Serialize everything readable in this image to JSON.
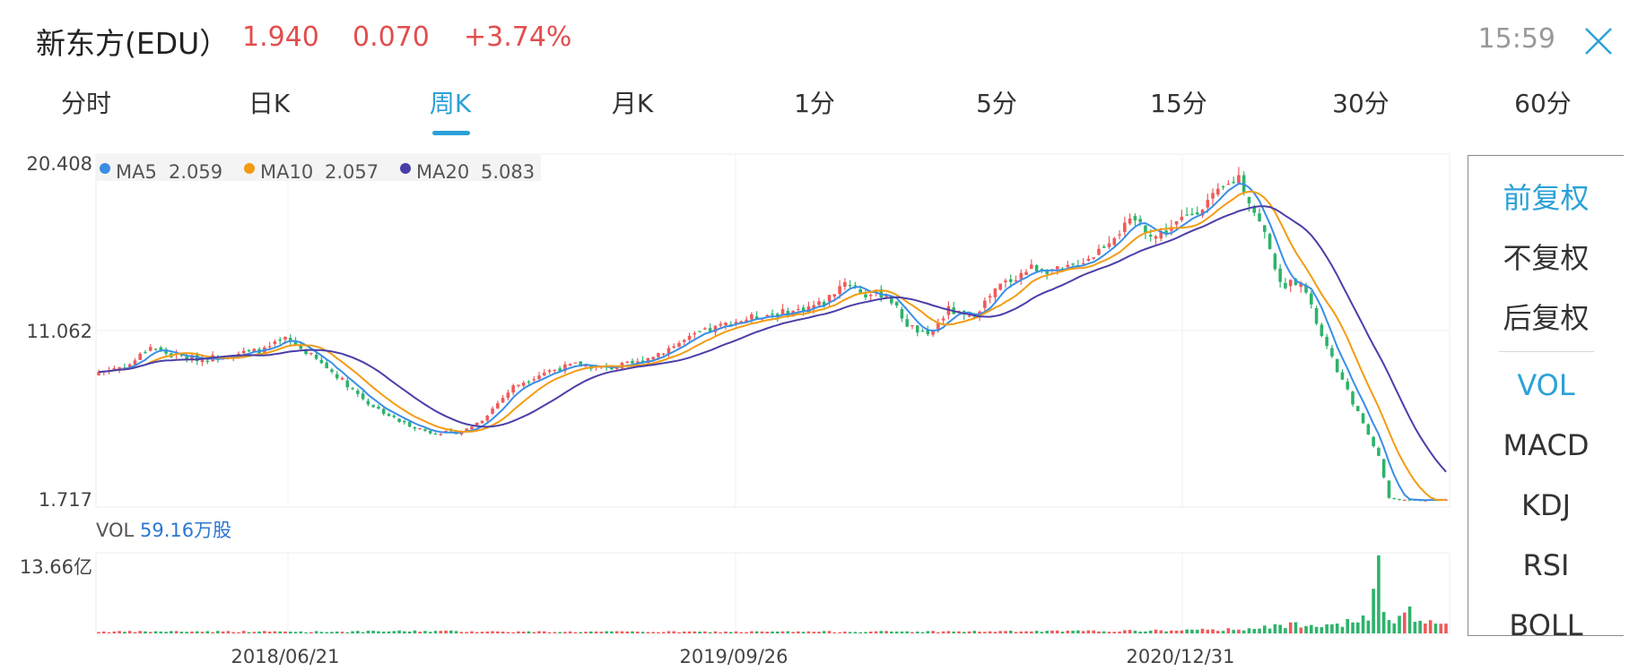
{
  "header": {
    "stock_name": "新东方(EDU）",
    "price": "1.940",
    "change": "0.070",
    "change_pct": "+3.74%",
    "time": "15:59"
  },
  "tabs": [
    "分时",
    "日K",
    "周K",
    "月K",
    "1分",
    "5分",
    "15分",
    "30分",
    "60分"
  ],
  "active_tab": "周K",
  "side_panel": {
    "adjust_options": [
      "前复权",
      "不复权",
      "后复权"
    ],
    "active_adjust": "前复权",
    "indicators": [
      "VOL",
      "MACD",
      "KDJ",
      "RSI",
      "BOLL"
    ],
    "active_indicator": "VOL"
  },
  "colors": {
    "up": "#ef5a5a",
    "down": "#2db36b",
    "ma5": "#3a8ee6",
    "ma10": "#f39c12",
    "ma20": "#4a3fa8",
    "accent": "#2ba1d7"
  },
  "chart_data": {
    "type": "candlestick",
    "title": "新东方(EDU) 周K",
    "price_axis": {
      "ticks": [
        "20.408",
        "11.062",
        "1.717"
      ],
      "max": 20.408,
      "min": 1.717
    },
    "date_labels": [
      "2018/06/21",
      "2019/09/26",
      "2020/12/31"
    ],
    "legend": [
      {
        "name": "MA5",
        "value": "2.059"
      },
      {
        "name": "MA10",
        "value": "2.057"
      },
      {
        "name": "MA20",
        "value": "5.083"
      }
    ],
    "volume": {
      "label": "VOL",
      "value": "59.16万股",
      "max_label": "13.66亿",
      "max": 13.66,
      "unit": "亿"
    },
    "close_anchors": [
      [
        0,
        8.9
      ],
      [
        6,
        9.3
      ],
      [
        10,
        10.3
      ],
      [
        14,
        9.8
      ],
      [
        20,
        9.6
      ],
      [
        26,
        9.9
      ],
      [
        32,
        10.1
      ],
      [
        36,
        10.7
      ],
      [
        40,
        10.0
      ],
      [
        46,
        8.7
      ],
      [
        52,
        7.2
      ],
      [
        58,
        6.2
      ],
      [
        64,
        5.6
      ],
      [
        70,
        5.6
      ],
      [
        74,
        6.3
      ],
      [
        80,
        8.1
      ],
      [
        86,
        8.9
      ],
      [
        92,
        9.3
      ],
      [
        98,
        9.1
      ],
      [
        104,
        9.4
      ],
      [
        110,
        10.2
      ],
      [
        116,
        11.0
      ],
      [
        122,
        11.6
      ],
      [
        128,
        12.0
      ],
      [
        134,
        12.2
      ],
      [
        140,
        12.7
      ],
      [
        144,
        13.9
      ],
      [
        148,
        13.1
      ],
      [
        152,
        13.2
      ],
      [
        156,
        11.5
      ],
      [
        160,
        10.8
      ],
      [
        164,
        12.3
      ],
      [
        168,
        11.8
      ],
      [
        174,
        13.6
      ],
      [
        180,
        14.6
      ],
      [
        186,
        14.4
      ],
      [
        192,
        15.3
      ],
      [
        196,
        16.4
      ],
      [
        200,
        17.2
      ],
      [
        204,
        16.3
      ],
      [
        208,
        17.0
      ],
      [
        212,
        17.8
      ],
      [
        216,
        18.6
      ],
      [
        220,
        19.6
      ],
      [
        222,
        18.3
      ],
      [
        226,
        15.8
      ],
      [
        228,
        13.6
      ],
      [
        232,
        14.0
      ],
      [
        236,
        10.8
      ],
      [
        240,
        8.4
      ],
      [
        244,
        6.1
      ],
      [
        247,
        4.3
      ],
      [
        249,
        2.0
      ],
      [
        252,
        1.9
      ],
      [
        256,
        1.9
      ],
      [
        260,
        1.94
      ]
    ],
    "volume_anchors": [
      [
        0,
        0.3
      ],
      [
        20,
        0.35
      ],
      [
        40,
        0.3
      ],
      [
        50,
        0.32
      ],
      [
        62,
        0.42
      ],
      [
        80,
        0.3
      ],
      [
        120,
        0.28
      ],
      [
        150,
        0.32
      ],
      [
        180,
        0.35
      ],
      [
        200,
        0.45
      ],
      [
        215,
        0.6
      ],
      [
        225,
        1.0
      ],
      [
        232,
        1.7
      ],
      [
        238,
        1.8
      ],
      [
        242,
        1.9
      ],
      [
        245,
        2.6
      ],
      [
        246,
        7.8
      ],
      [
        247,
        13.66
      ],
      [
        248,
        2.7
      ],
      [
        250,
        2.0
      ],
      [
        252,
        3.9
      ],
      [
        254,
        2.9
      ],
      [
        256,
        2.0
      ],
      [
        260,
        1.6
      ]
    ]
  }
}
